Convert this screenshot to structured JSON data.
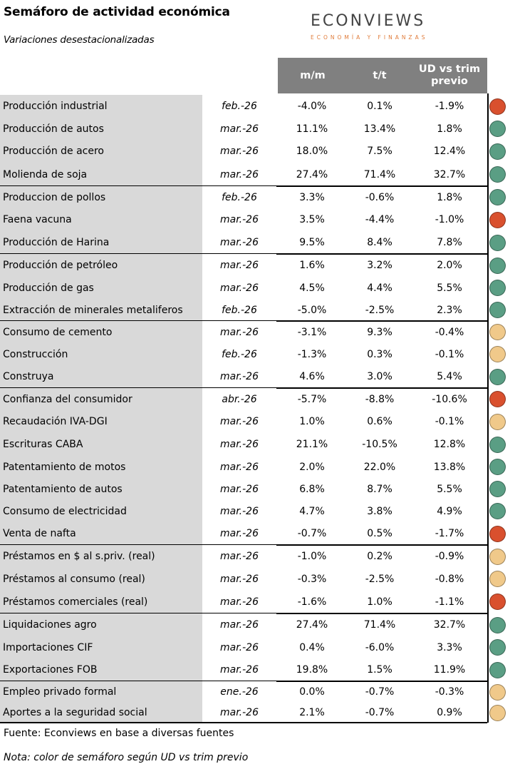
{
  "title": "Semáforo de actividad económica",
  "subtitle": "Variaciones desestacionalizadas",
  "logo": {
    "main": "ECONVIEWS",
    "sub": "ECONOMÍA Y FINANZAS"
  },
  "headers": {
    "mm": "m/m",
    "tt": "t/t",
    "ud_line1": "UD vs trim",
    "ud_line2": "previo"
  },
  "colors": {
    "red": "#d9502e",
    "green": "#5a9e84",
    "yellow": "#f0c98a",
    "header_bg": "#808080",
    "name_bg": "#d9d9d9"
  },
  "rows": [
    {
      "name": "Producción industrial",
      "date": "feb.-26",
      "mm": "-4.0%",
      "tt": "0.1%",
      "ud": "-1.9%",
      "signal": "red"
    },
    {
      "name": "Producción de autos",
      "date": "mar.-26",
      "mm": "11.1%",
      "tt": "13.4%",
      "ud": "1.8%",
      "signal": "green"
    },
    {
      "name": "Producción de acero",
      "date": "mar.-26",
      "mm": "18.0%",
      "tt": "7.5%",
      "ud": "12.4%",
      "signal": "green"
    },
    {
      "name": "Molienda de soja",
      "date": "mar.-26",
      "mm": "27.4%",
      "tt": "71.4%",
      "ud": "32.7%",
      "signal": "green"
    },
    {
      "name": "Produccion de pollos",
      "date": "feb.-26",
      "mm": "3.3%",
      "tt": "-0.6%",
      "ud": "1.8%",
      "signal": "green"
    },
    {
      "name": "Faena vacuna",
      "date": "mar.-26",
      "mm": "3.5%",
      "tt": "-4.4%",
      "ud": "-1.0%",
      "signal": "red"
    },
    {
      "name": "Producción de Harina",
      "date": "mar.-26",
      "mm": "9.5%",
      "tt": "8.4%",
      "ud": "7.8%",
      "signal": "green"
    },
    {
      "name": "Producción de petróleo",
      "date": "mar.-26",
      "mm": "1.6%",
      "tt": "3.2%",
      "ud": "2.0%",
      "signal": "green"
    },
    {
      "name": "Producción de gas",
      "date": "mar.-26",
      "mm": "4.5%",
      "tt": "4.4%",
      "ud": "5.5%",
      "signal": "green"
    },
    {
      "name": "Extracción de minerales metaliferos",
      "date": "feb.-26",
      "mm": "-5.0%",
      "tt": "-2.5%",
      "ud": "2.3%",
      "signal": "green"
    },
    {
      "name": "Consumo de cemento",
      "date": "mar.-26",
      "mm": "-3.1%",
      "tt": "9.3%",
      "ud": "-0.4%",
      "signal": "yellow"
    },
    {
      "name": "Construcción",
      "date": "feb.-26",
      "mm": "-1.3%",
      "tt": "0.3%",
      "ud": "-0.1%",
      "signal": "yellow"
    },
    {
      "name": "Construya",
      "date": "mar.-26",
      "mm": "4.6%",
      "tt": "3.0%",
      "ud": "5.4%",
      "signal": "green"
    },
    {
      "name": "Confianza del consumidor",
      "date": "abr.-26",
      "mm": "-5.7%",
      "tt": "-8.8%",
      "ud": "-10.6%",
      "signal": "red"
    },
    {
      "name": "Recaudación IVA-DGI",
      "date": "mar.-26",
      "mm": "1.0%",
      "tt": "0.6%",
      "ud": "-0.1%",
      "signal": "yellow"
    },
    {
      "name": "Escrituras CABA",
      "date": "mar.-26",
      "mm": "21.1%",
      "tt": "-10.5%",
      "ud": "12.8%",
      "signal": "green"
    },
    {
      "name": "Patentamiento de motos",
      "date": "mar.-26",
      "mm": "2.0%",
      "tt": "22.0%",
      "ud": "13.8%",
      "signal": "green"
    },
    {
      "name": "Patentamiento de autos",
      "date": "mar.-26",
      "mm": "6.8%",
      "tt": "8.7%",
      "ud": "5.5%",
      "signal": "green"
    },
    {
      "name": "Consumo de electricidad",
      "date": "mar.-26",
      "mm": "4.7%",
      "tt": "3.8%",
      "ud": "4.9%",
      "signal": "green"
    },
    {
      "name": "Venta de nafta",
      "date": "mar.-26",
      "mm": "-0.7%",
      "tt": "0.5%",
      "ud": "-1.7%",
      "signal": "red"
    },
    {
      "name": "Préstamos en $ al s.priv. (real)",
      "date": "mar.-26",
      "mm": "-1.0%",
      "tt": "0.2%",
      "ud": "-0.9%",
      "signal": "yellow"
    },
    {
      "name": "Préstamos al consumo (real)",
      "date": "mar.-26",
      "mm": "-0.3%",
      "tt": "-2.5%",
      "ud": "-0.8%",
      "signal": "yellow"
    },
    {
      "name": "Préstamos comerciales (real)",
      "date": "mar.-26",
      "mm": "-1.6%",
      "tt": "1.0%",
      "ud": "-1.1%",
      "signal": "red"
    },
    {
      "name": "Liquidaciones agro",
      "date": "mar.-26",
      "mm": "27.4%",
      "tt": "71.4%",
      "ud": "32.7%",
      "signal": "green"
    },
    {
      "name": "Importaciones CIF",
      "date": "mar.-26",
      "mm": "0.4%",
      "tt": "-6.0%",
      "ud": "3.3%",
      "signal": "green"
    },
    {
      "name": "Exportaciones FOB",
      "date": "mar.-26",
      "mm": "19.8%",
      "tt": "1.5%",
      "ud": "11.9%",
      "signal": "green"
    },
    {
      "name": "Empleo privado formal",
      "date": "ene.-26",
      "mm": "0.0%",
      "tt": "-0.7%",
      "ud": "-0.3%",
      "signal": "yellow"
    },
    {
      "name": "Aportes a la seguridad social",
      "date": "mar.-26",
      "mm": "2.1%",
      "tt": "-0.7%",
      "ud": "0.9%",
      "signal": "yellow"
    }
  ],
  "footer": {
    "source": "Fuente: Econviews en base a diversas fuentes",
    "note": "Nota: color de semáforo según UD vs trim previo"
  }
}
